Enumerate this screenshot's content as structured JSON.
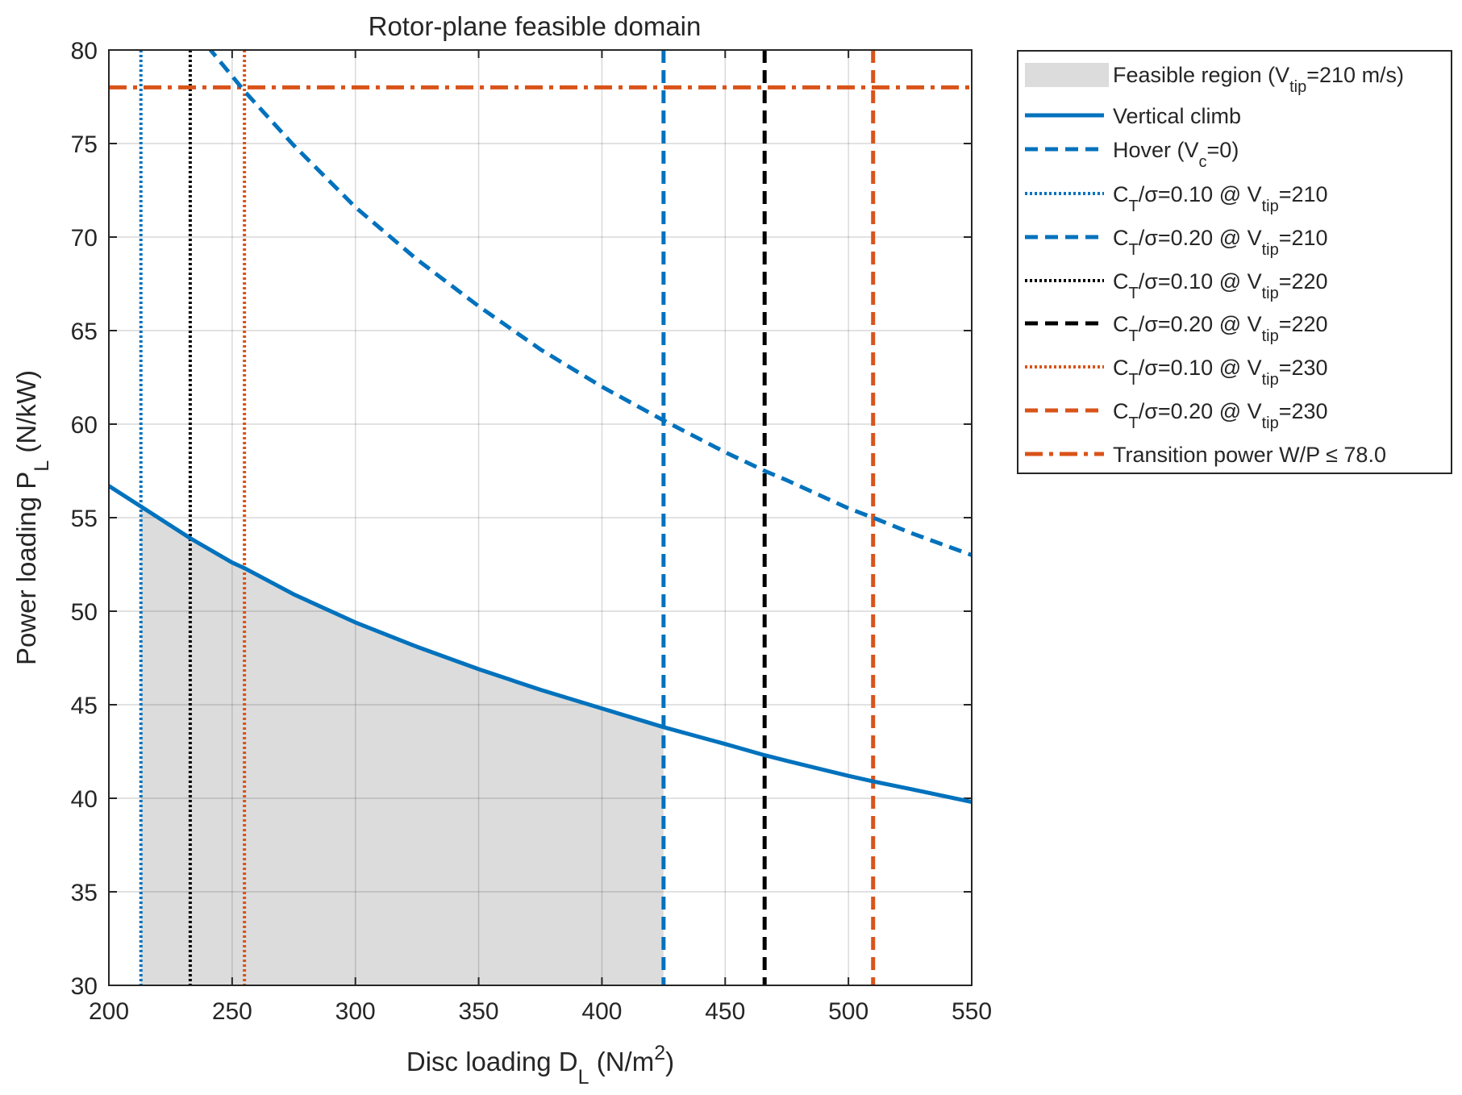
{
  "chart_data": {
    "type": "line",
    "title": "Rotor-plane feasible domain",
    "xlabel": {
      "main": "Disc loading  D",
      "sub": "L",
      "unit_pre": "  (N/m",
      "sup": "2",
      "unit_post": ")"
    },
    "ylabel": {
      "main": "Power loading  P",
      "sub": "L",
      "unit": "  (N/kW)"
    },
    "xlim": [
      200,
      550
    ],
    "ylim": [
      30,
      80
    ],
    "xticks": [
      200,
      250,
      300,
      350,
      400,
      450,
      500,
      550
    ],
    "yticks": [
      30,
      35,
      40,
      45,
      50,
      55,
      60,
      65,
      70,
      75,
      80
    ],
    "grid": true,
    "colors": {
      "blue": "#0072BD",
      "black": "#000000",
      "orange": "#D95319",
      "fill": "#DCDCDC",
      "grid": "#D9D9D9",
      "axis": "#262626"
    },
    "series": [
      {
        "name": "Vertical climb",
        "x": [
          200,
          213,
          233,
          250,
          255,
          275,
          300,
          325,
          350,
          375,
          400,
          425,
          450,
          466,
          475,
          500,
          510,
          525,
          550
        ],
        "y": [
          56.7,
          55.6,
          53.9,
          52.6,
          52.3,
          50.9,
          49.4,
          48.1,
          46.9,
          45.8,
          44.8,
          43.8,
          42.9,
          42.3,
          42.0,
          41.2,
          40.9,
          40.5,
          39.8
        ],
        "color": "#0072BD",
        "dash": "solid"
      },
      {
        "name": "Hover (V_c=0)",
        "x": [
          240,
          250,
          255,
          275,
          300,
          325,
          350,
          375,
          400,
          425,
          450,
          466,
          475,
          500,
          510,
          525,
          550
        ],
        "y": [
          80.2,
          78.6,
          77.8,
          74.9,
          71.6,
          68.8,
          66.3,
          64.0,
          62.0,
          60.2,
          58.5,
          57.5,
          57.0,
          55.5,
          55.0,
          54.2,
          53.0
        ],
        "color": "#0072BD",
        "dash": "dashed"
      }
    ],
    "vlines": [
      {
        "name": "C_T/σ=0.10 @ V_tip=210",
        "x": 213,
        "color": "#0072BD",
        "dash": "dotted"
      },
      {
        "name": "C_T/σ=0.20 @ V_tip=210",
        "x": 425,
        "color": "#0072BD",
        "dash": "dashed"
      },
      {
        "name": "C_T/σ=0.10 @ V_tip=220",
        "x": 233,
        "color": "#000000",
        "dash": "dotted"
      },
      {
        "name": "C_T/σ=0.20 @ V_tip=220",
        "x": 466,
        "color": "#000000",
        "dash": "dashed"
      },
      {
        "name": "C_T/σ=0.10 @ V_tip=230",
        "x": 255,
        "color": "#D95319",
        "dash": "dotted"
      },
      {
        "name": "C_T/σ=0.20 @ V_tip=230",
        "x": 510,
        "color": "#D95319",
        "dash": "dashed"
      }
    ],
    "hlines": [
      {
        "name": "Transition power W/P ≤ 78.0",
        "y": 78.0,
        "color": "#D95319",
        "dash": "dashdot"
      }
    ],
    "feasible_region": {
      "name": "Feasible region (V_tip=210 m/s)",
      "x_range": [
        213,
        425
      ],
      "lower": 30,
      "upper_series": "Vertical climb"
    },
    "legend": {
      "placement": "outside-top-right",
      "entries": [
        {
          "style": "fill",
          "color": "#DCDCDC",
          "parts": [
            [
              "Feasible region (V",
              ""
            ],
            [
              "tip",
              "sub"
            ],
            [
              "=210 m/s)",
              ""
            ]
          ]
        },
        {
          "style": "solid",
          "color": "#0072BD",
          "parts": [
            [
              "Vertical climb",
              ""
            ]
          ]
        },
        {
          "style": "dashed",
          "color": "#0072BD",
          "parts": [
            [
              "Hover (V",
              ""
            ],
            [
              "c",
              "sub"
            ],
            [
              "=0)",
              ""
            ]
          ]
        },
        {
          "style": "dotted",
          "color": "#0072BD",
          "parts": [
            [
              "C",
              ""
            ],
            [
              "T",
              "sub"
            ],
            [
              "/σ=0.10 @ V",
              ""
            ],
            [
              "tip",
              "sub"
            ],
            [
              "=210",
              ""
            ]
          ]
        },
        {
          "style": "dashed",
          "color": "#0072BD",
          "parts": [
            [
              "C",
              ""
            ],
            [
              "T",
              "sub"
            ],
            [
              "/σ=0.20 @ V",
              ""
            ],
            [
              "tip",
              "sub"
            ],
            [
              "=210",
              ""
            ]
          ]
        },
        {
          "style": "dotted",
          "color": "#000000",
          "parts": [
            [
              "C",
              ""
            ],
            [
              "T",
              "sub"
            ],
            [
              "/σ=0.10 @ V",
              ""
            ],
            [
              "tip",
              "sub"
            ],
            [
              "=220",
              ""
            ]
          ]
        },
        {
          "style": "dashed",
          "color": "#000000",
          "parts": [
            [
              "C",
              ""
            ],
            [
              "T",
              "sub"
            ],
            [
              "/σ=0.20 @ V",
              ""
            ],
            [
              "tip",
              "sub"
            ],
            [
              "=220",
              ""
            ]
          ]
        },
        {
          "style": "dotted",
          "color": "#D95319",
          "parts": [
            [
              "C",
              ""
            ],
            [
              "T",
              "sub"
            ],
            [
              "/σ=0.10 @ V",
              ""
            ],
            [
              "tip",
              "sub"
            ],
            [
              "=230",
              ""
            ]
          ]
        },
        {
          "style": "dashed",
          "color": "#D95319",
          "parts": [
            [
              "C",
              ""
            ],
            [
              "T",
              "sub"
            ],
            [
              "/σ=0.20 @ V",
              ""
            ],
            [
              "tip",
              "sub"
            ],
            [
              "=230",
              ""
            ]
          ]
        },
        {
          "style": "dashdot",
          "color": "#D95319",
          "parts": [
            [
              "Transition power  W/P  ≤ 78.0",
              ""
            ]
          ]
        }
      ]
    }
  }
}
